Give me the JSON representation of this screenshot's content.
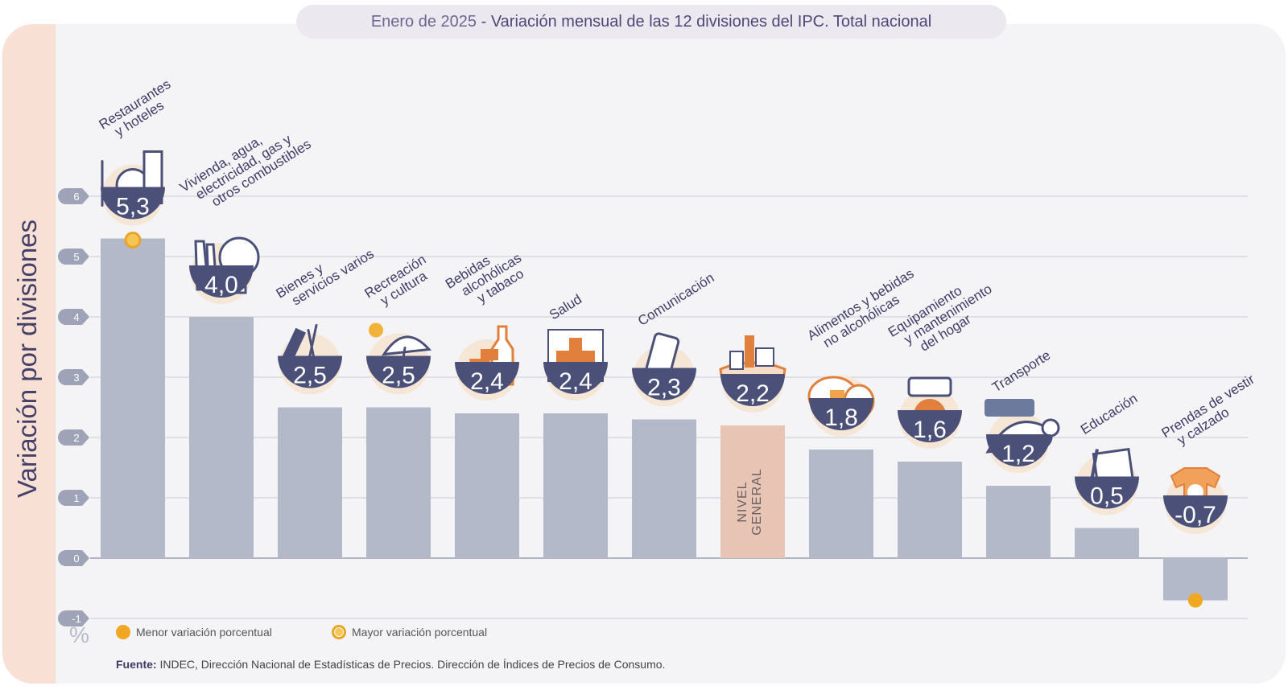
{
  "title": {
    "period": "Enero de 2025",
    "separator": " - ",
    "text": "Variación mensual de las 12 divisiones del IPC. Total nacional"
  },
  "y_axis_label": "Variación por divisiones",
  "unit_label": "%",
  "legend": {
    "min_label": "Menor variación porcentual",
    "max_label": "Mayor variación porcentual"
  },
  "source": {
    "label": "Fuente:",
    "text": " INDEC, Dirección Nacional de Estadísticas de Precios. Dirección de Índices de Precios de Consumo."
  },
  "colors": {
    "bar": "#b3b9c9",
    "nivel_general_bar": "#e7c4b4",
    "badge": "#4b5079",
    "accent_orange": "#e1803d",
    "marker": "#f0a823"
  },
  "chart_data": {
    "type": "bar",
    "categories": [
      "Restaurantes y hoteles",
      "Vivienda, agua, electricidad, gas y otros combustibles",
      "Bienes y servicios varios",
      "Recreación y cultura",
      "Bebidas alcohólicas y tabaco",
      "Salud",
      "Comunicación",
      "Nivel general",
      "Alimentos y bebidas no alcohólicas",
      "Equipamiento y mantenimiento del hogar",
      "Transporte",
      "Educación",
      "Prendas de vestir y calzado"
    ],
    "category_label_lines": [
      [
        "Restaurantes",
        "y hoteles"
      ],
      [
        "Vivienda, agua,",
        "electricidad, gas y",
        "otros combustibles"
      ],
      [
        "Bienes y",
        "servicios varios"
      ],
      [
        "Recreación",
        "y cultura"
      ],
      [
        "Bebidas",
        "alcohólicas",
        "y tabaco"
      ],
      [
        "Salud"
      ],
      [
        "Comunicación"
      ],
      [],
      [
        "Alimentos y bebidas",
        "no alcohólicas"
      ],
      [
        "Equipamiento",
        "y mantenimiento",
        "del hogar"
      ],
      [
        "Transporte"
      ],
      [
        "Educación"
      ],
      [
        "Prendas de vestir",
        "y calzado"
      ]
    ],
    "values": [
      5.3,
      4.0,
      2.5,
      2.5,
      2.4,
      2.4,
      2.3,
      2.2,
      1.8,
      1.6,
      1.2,
      0.5,
      -0.7
    ],
    "value_labels": [
      "5,3",
      "4,0",
      "2,5",
      "2,5",
      "2,4",
      "2,4",
      "2,3",
      "2,2",
      "1,8",
      "1,6",
      "1,2",
      "0,5",
      "-0,7"
    ],
    "icons": [
      "restaurant-icon",
      "house-utilities-icon",
      "comb-scissors-icon",
      "umbrella-sun-icon",
      "bottle-glass-icon",
      "health-cross-icon",
      "phone-icon",
      "shopping-bag-icon",
      "food-chicken-icon",
      "washer-icon",
      "bus-card-icon",
      "notebook-pencil-icon",
      "tshirt-icon"
    ],
    "highlight_label_lines": [
      "NIVEL",
      "GENERAL"
    ],
    "highlight_index": 7,
    "max_index": 0,
    "min_index": 12,
    "ylim": [
      -1,
      6
    ],
    "yticks": [
      "-1",
      "0",
      "1",
      "2",
      "3",
      "4",
      "5",
      "6"
    ],
    "grid": true
  }
}
